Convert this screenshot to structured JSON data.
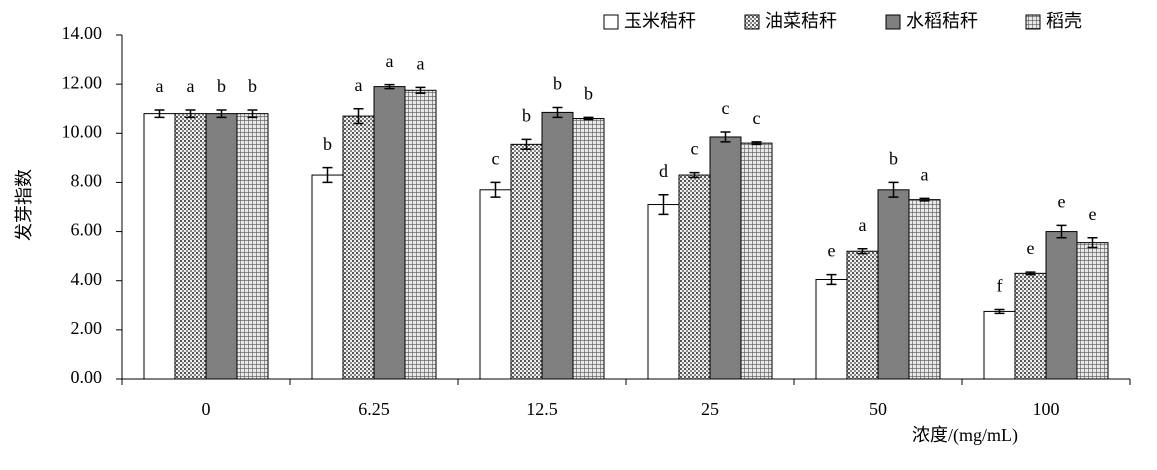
{
  "chart_data": {
    "type": "bar",
    "x_label": "浓度/(mg/mL)",
    "y_label": "发芽指数",
    "categories": [
      "0",
      "6.25",
      "12.5",
      "25",
      "50",
      "100"
    ],
    "series": [
      {
        "name": "玉米秸秆",
        "color": "#ffffff",
        "pattern": "none",
        "values": [
          10.8,
          8.3,
          7.7,
          7.1,
          4.05,
          2.75
        ],
        "errors": [
          0.15,
          0.3,
          0.3,
          0.4,
          0.2,
          0.08
        ],
        "labels": [
          "a",
          "b",
          "c",
          "d",
          "e",
          "f"
        ]
      },
      {
        "name": "油菜秸秆",
        "color": "#d9d9d9",
        "pattern": "dots",
        "values": [
          10.8,
          10.7,
          9.55,
          8.3,
          5.2,
          4.3
        ],
        "errors": [
          0.15,
          0.3,
          0.2,
          0.1,
          0.1,
          0.05
        ],
        "labels": [
          "a",
          "a",
          "b",
          "c",
          "a",
          "e"
        ]
      },
      {
        "name": "水稻秸秆",
        "color": "#808080",
        "pattern": "none",
        "values": [
          10.8,
          11.9,
          10.85,
          9.85,
          7.7,
          6.0
        ],
        "errors": [
          0.15,
          0.08,
          0.2,
          0.2,
          0.3,
          0.25
        ],
        "labels": [
          "b",
          "a",
          "b",
          "c",
          "b",
          "e"
        ]
      },
      {
        "name": "稻壳",
        "color": "#c0c0c0",
        "pattern": "grid",
        "values": [
          10.8,
          11.75,
          10.6,
          9.6,
          7.3,
          5.55
        ],
        "errors": [
          0.15,
          0.12,
          0.05,
          0.05,
          0.05,
          0.2
        ],
        "labels": [
          "b",
          "a",
          "b",
          "c",
          "a",
          "e"
        ]
      }
    ],
    "ylim": [
      0,
      14
    ],
    "yticks": [
      {
        "value": 0,
        "label": "0.00"
      },
      {
        "value": 2,
        "label": "2.00"
      },
      {
        "value": 4,
        "label": "4.00"
      },
      {
        "value": 6,
        "label": "6.00"
      },
      {
        "value": 8,
        "label": "8.00"
      },
      {
        "value": 10,
        "label": "10.00"
      },
      {
        "value": 12,
        "label": "12.00"
      },
      {
        "value": 14,
        "label": "14.00"
      }
    ],
    "legend": "top-right"
  }
}
